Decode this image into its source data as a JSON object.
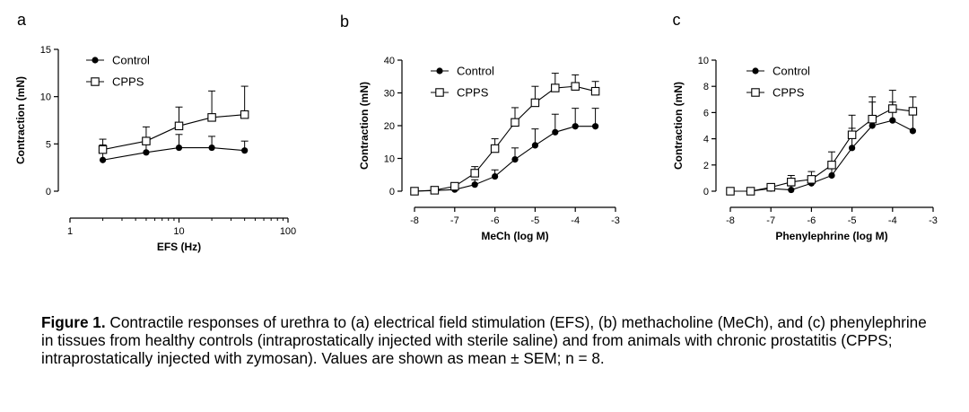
{
  "chart_data": [
    {
      "panel_label": "a",
      "type": "line",
      "xscale": "log",
      "xlabel": "EFS (Hz)",
      "ylabel": "Contraction (mN)",
      "xlim": [
        1,
        100
      ],
      "ylim": [
        0,
        15
      ],
      "xticks": [
        1,
        10,
        100
      ],
      "xtick_labels": [
        "1",
        "10",
        "100"
      ],
      "yticks": [
        0,
        5,
        10,
        15
      ],
      "ytick_labels": [
        "0",
        "5",
        "10",
        "15"
      ],
      "legend": "top-left",
      "series": [
        {
          "name": "Control",
          "marker": "filled-circle",
          "x": [
            2,
            5,
            10,
            20,
            40
          ],
          "y": [
            3.3,
            4.1,
            4.6,
            4.6,
            4.3
          ],
          "sem": [
            1.6,
            1.4,
            1.4,
            1.2,
            1.0
          ]
        },
        {
          "name": "CPPS",
          "marker": "open-square",
          "x": [
            2,
            5,
            10,
            20,
            40
          ],
          "y": [
            4.4,
            5.3,
            6.9,
            7.8,
            8.1
          ],
          "sem": [
            1.1,
            1.5,
            2.0,
            2.8,
            3.0
          ]
        }
      ]
    },
    {
      "panel_label": "b",
      "type": "line",
      "xscale": "linear",
      "xlabel": "MeCh (log M)",
      "ylabel": "Contraction (mN)",
      "xlim": [
        -8,
        -3
      ],
      "ylim": [
        0,
        40
      ],
      "xticks": [
        -8,
        -7,
        -6,
        -5,
        -4,
        -3
      ],
      "xtick_labels": [
        "-8",
        "-7",
        "-6",
        "-5",
        "-4",
        "-3"
      ],
      "yticks": [
        0,
        10,
        20,
        30,
        40
      ],
      "ytick_labels": [
        "0",
        "10",
        "20",
        "30",
        "40"
      ],
      "legend": "top-left",
      "series": [
        {
          "name": "Control",
          "marker": "filled-circle",
          "x": [
            -8,
            -7.5,
            -7,
            -6.5,
            -6,
            -5.5,
            -5,
            -4.5,
            -4,
            -3.5
          ],
          "y": [
            0,
            0.2,
            0.5,
            2,
            4.5,
            9.7,
            14,
            18,
            19.8,
            19.8
          ],
          "sem": [
            0,
            0.2,
            0.5,
            1.5,
            2,
            3.5,
            5,
            5.5,
            5.5,
            5.5
          ]
        },
        {
          "name": "CPPS",
          "marker": "open-square",
          "x": [
            -8,
            -7.5,
            -7,
            -6.5,
            -6,
            -5.5,
            -5,
            -4.5,
            -4,
            -3.5
          ],
          "y": [
            0,
            0.3,
            1.5,
            5.5,
            13,
            21,
            27,
            31.5,
            32,
            30.5
          ],
          "sem": [
            0,
            0.3,
            1,
            2,
            3,
            4.5,
            5,
            4.5,
            3.5,
            3
          ]
        }
      ]
    },
    {
      "panel_label": "c",
      "type": "line",
      "xscale": "linear",
      "xlabel": "Phenylephrine (log M)",
      "ylabel": "Contraction (mN)",
      "xlim": [
        -8,
        -3
      ],
      "ylim": [
        0,
        10
      ],
      "xticks": [
        -8,
        -7,
        -6,
        -5,
        -4,
        -3
      ],
      "xtick_labels": [
        "-8",
        "-7",
        "-6",
        "-5",
        "-4",
        "-3"
      ],
      "yticks": [
        0,
        2,
        4,
        6,
        8,
        10
      ],
      "ytick_labels": [
        "0",
        "2",
        "4",
        "6",
        "8",
        "10"
      ],
      "legend": "top-left",
      "series": [
        {
          "name": "Control",
          "marker": "filled-circle",
          "x": [
            -8,
            -7.5,
            -7,
            -6.5,
            -6,
            -5.5,
            -5,
            -4.5,
            -4,
            -3.5
          ],
          "y": [
            0,
            0,
            0.2,
            0.1,
            0.6,
            1.2,
            3.3,
            5,
            5.4,
            4.6
          ],
          "sem": [
            0,
            0,
            0.1,
            0.3,
            0.5,
            0.7,
            1.5,
            1.8,
            1.4,
            1.6
          ]
        },
        {
          "name": "CPPS",
          "marker": "open-square",
          "x": [
            -8,
            -7.5,
            -7,
            -6.5,
            -6,
            -5.5,
            -5,
            -4.5,
            -4,
            -3.5
          ],
          "y": [
            0,
            0,
            0.3,
            0.7,
            0.9,
            2,
            4.3,
            5.5,
            6.3,
            6.1
          ],
          "sem": [
            0,
            0,
            0.2,
            0.5,
            0.6,
            1,
            1.5,
            1.7,
            1.4,
            1.1
          ]
        }
      ]
    }
  ],
  "caption": {
    "bold": "Figure 1.",
    "text": " Contractile responses of urethra to (a) electrical field stimulation (EFS), (b) methacholine (MeCh), and (c) phenylephrine in tissues from healthy controls (intraprostatically injected with sterile saline) and from animals with chronic prostatitis (CPPS; intraprostatically injected with zymosan). Values are shown as mean ± SEM; n = 8."
  }
}
